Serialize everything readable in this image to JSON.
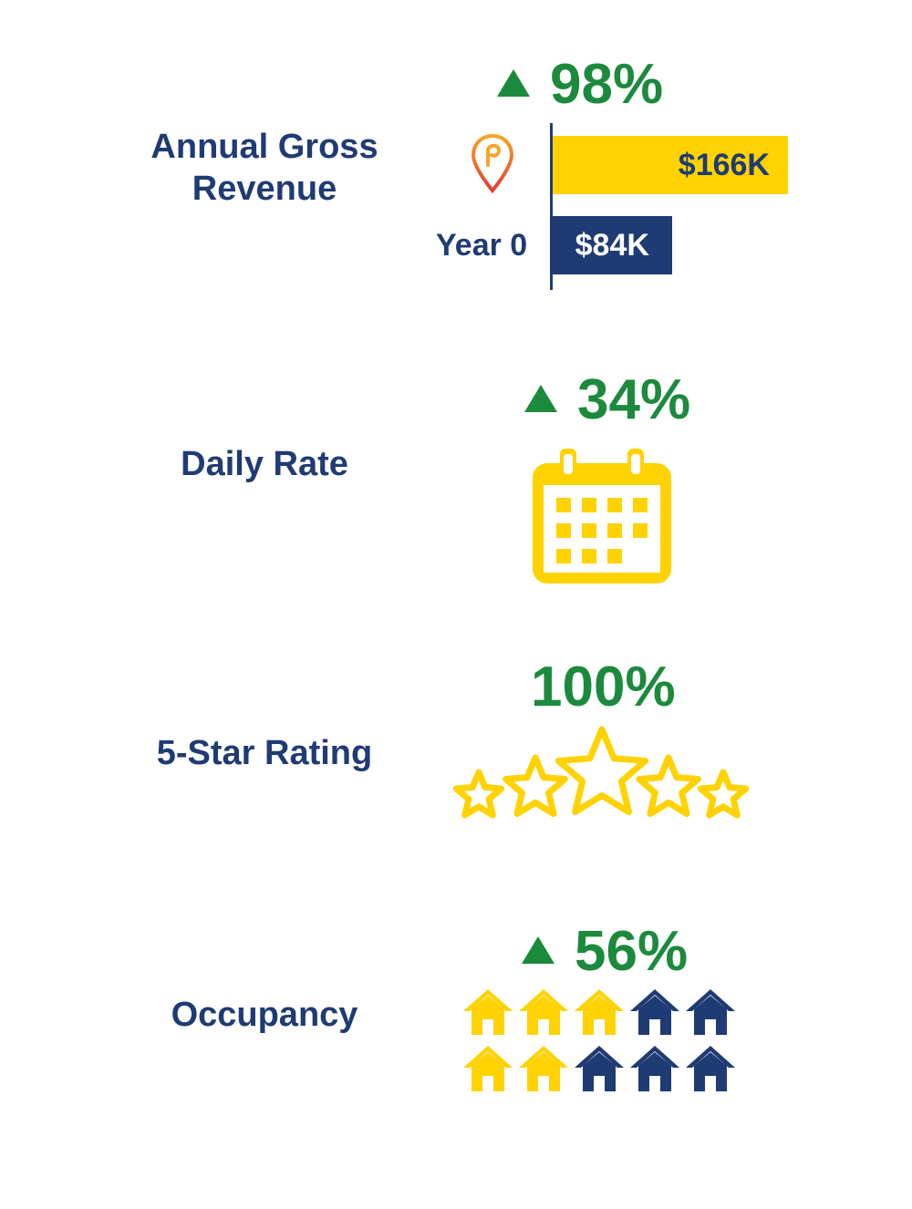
{
  "colors": {
    "navy": "#1f3b73",
    "yellow": "#ffd200",
    "green": "#1b8a3c"
  },
  "sections": {
    "revenue": {
      "label_line1": "Annual Gross",
      "label_line2": "Revenue",
      "change": "98%",
      "direction": "up",
      "logo_icon": "map-pin-logo-icon"
    },
    "daily_rate": {
      "label": "Daily Rate",
      "change": "34%",
      "direction": "up",
      "icon": "calendar-icon"
    },
    "rating": {
      "label": "5-Star Rating",
      "value": "100%",
      "icon": "star-icon",
      "stars": 5
    },
    "occupancy": {
      "label": "Occupancy",
      "change": "56%",
      "direction": "up",
      "icon": "house-icon",
      "houses_total": 10,
      "houses_highlighted": 5
    }
  },
  "chart_data": {
    "type": "bar",
    "orientation": "horizontal",
    "categories": [
      "",
      "Year 0"
    ],
    "values": [
      166,
      84
    ],
    "value_labels": [
      "$166K",
      "$84K"
    ],
    "unit": "$K",
    "colors": [
      "#ffd200",
      "#1f3b73"
    ]
  }
}
